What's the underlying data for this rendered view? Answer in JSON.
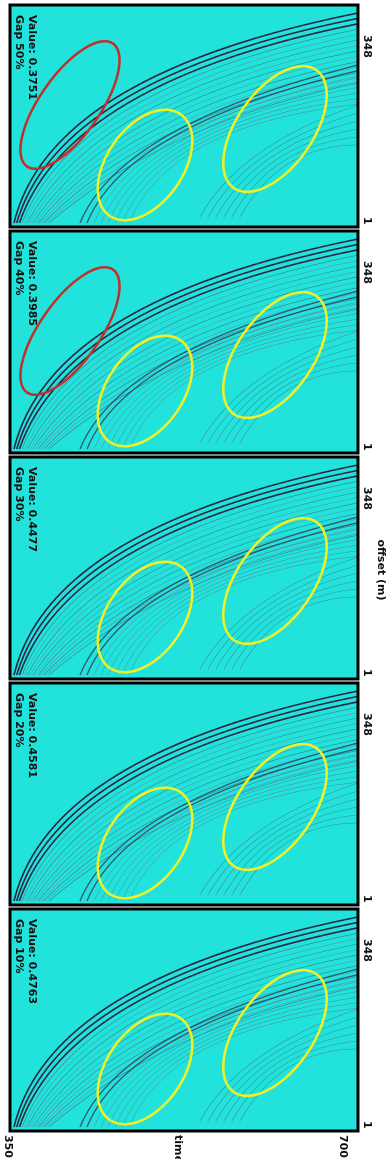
{
  "panels": [
    {
      "title": "Gap 50%",
      "value": "Value: 0.3751"
    },
    {
      "title": "Gap 40%",
      "value": "Value: 0.3985"
    },
    {
      "title": "Gap 30%",
      "value": "Value: 0.4477"
    },
    {
      "title": "Gap 20%",
      "value": "Value: 0.4581"
    },
    {
      "title": "Gap 10%",
      "value": "Value: 0.4763"
    }
  ],
  "offset_ticks": [
    "348",
    "1"
  ],
  "offset_label": "offset (m)",
  "time_ticks": [
    "350",
    "700"
  ],
  "time_label": "time (s)"
}
